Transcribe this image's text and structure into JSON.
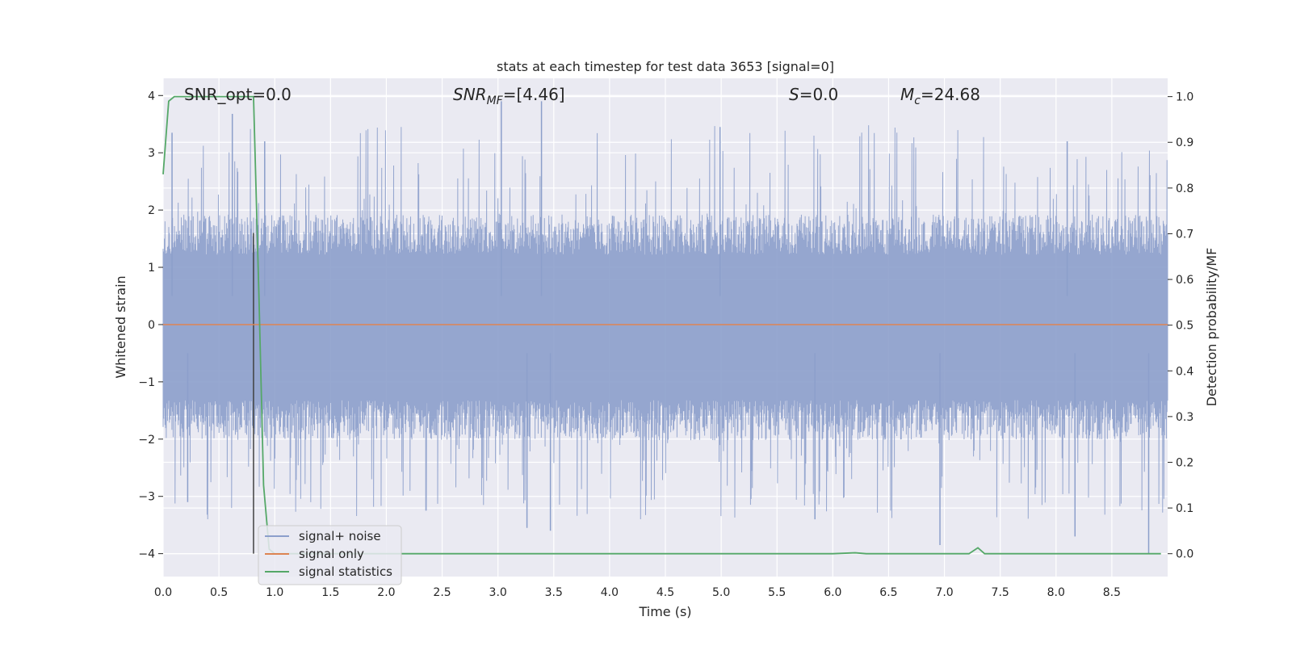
{
  "chart_data": {
    "type": "line",
    "title": "stats at each timestep for test data 3653 [signal=0]",
    "xlabel": "Time (s)",
    "ylabel_left": "Whitened strain",
    "ylabel_right": "Detection probability/MF",
    "xlim": [
      0.0,
      9.0
    ],
    "ylim_left": [
      -4.4,
      4.3
    ],
    "ylim_right": [
      -0.05,
      1.04
    ],
    "x_ticks": [
      "0.0",
      "0.5",
      "1.0",
      "1.5",
      "2.0",
      "2.5",
      "3.0",
      "3.5",
      "4.0",
      "4.5",
      "5.0",
      "5.5",
      "6.0",
      "6.5",
      "7.0",
      "7.5",
      "8.0",
      "8.5"
    ],
    "y_ticks_left": [
      "4",
      "3",
      "2",
      "1",
      "0",
      "−1",
      "−2",
      "−3",
      "−4"
    ],
    "y_ticks_right": [
      "1.0",
      "0.9",
      "0.8",
      "0.7",
      "0.6",
      "0.5",
      "0.4",
      "0.3",
      "0.2",
      "0.1",
      "0.0"
    ],
    "grid": true,
    "legend_position": "lower-left",
    "colors": {
      "background": "#eaeaf2",
      "grid": "#ffffff",
      "noise": "#8c9fcb",
      "signal": "#dd8452",
      "statistics": "#55a868",
      "marker": "#404040"
    },
    "annotations": {
      "snr_opt": "SNR_opt=0.0",
      "snr_mf_sym": "SNR",
      "snr_mf_sub": "MF",
      "snr_mf_val": "=[4.46]",
      "s_sym": "S",
      "s_val": "=0.0",
      "mc_sym": "M",
      "mc_sub": "c",
      "mc_val": "=24.68"
    },
    "marker_time": 0.81,
    "series": [
      {
        "name": "signal+ noise",
        "axis": "left",
        "envelope_upper_typical": 1.5,
        "envelope_lower_typical": -1.6,
        "peak_spikes": [
          [
            0.08,
            3.35
          ],
          [
            0.62,
            3.68
          ],
          [
            0.91,
            3.2
          ],
          [
            3.03,
            3.9
          ],
          [
            3.39,
            3.9
          ],
          [
            4.99,
            3.45
          ],
          [
            8.1,
            3.2
          ]
        ],
        "trough_spikes": [
          [
            0.22,
            -3.1
          ],
          [
            3.26,
            -3.55
          ],
          [
            3.47,
            -3.6
          ],
          [
            5.84,
            -3.4
          ],
          [
            6.96,
            -3.85
          ],
          [
            8.17,
            -3.7
          ],
          [
            8.83,
            -4.0
          ]
        ]
      },
      {
        "name": "signal only",
        "axis": "left",
        "x": [
          0.0,
          9.0
        ],
        "y": [
          0.0,
          0.0
        ]
      },
      {
        "name": "signal statistics",
        "axis": "right",
        "x": [
          0.0,
          0.05,
          0.1,
          0.2,
          0.4,
          0.6,
          0.81,
          0.86,
          0.9,
          0.95,
          1.0,
          1.1,
          2.0,
          3.0,
          4.0,
          5.0,
          6.0,
          6.2,
          6.3,
          7.0,
          7.22,
          7.3,
          7.36,
          7.5,
          8.0,
          8.94
        ],
        "y": [
          0.83,
          0.99,
          1.0,
          1.0,
          1.0,
          1.0,
          1.0,
          0.55,
          0.15,
          0.01,
          0.0,
          0.0,
          0.0,
          0.0,
          0.0,
          0.0,
          0.0,
          0.002,
          0.0,
          0.0,
          0.0,
          0.013,
          0.0,
          0.0,
          0.0,
          0.0
        ]
      }
    ]
  }
}
